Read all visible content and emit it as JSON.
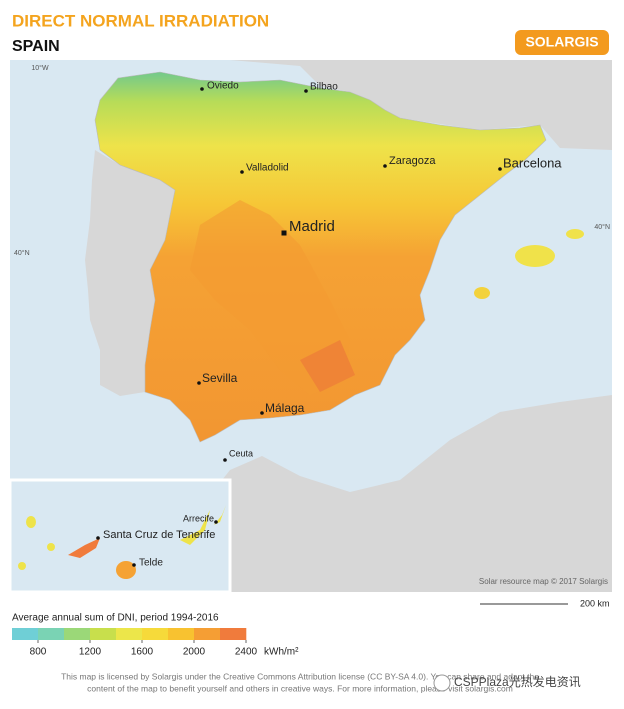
{
  "header": {
    "title": "DIRECT NORMAL IRRADIATION",
    "subtitle": "SPAIN",
    "brand": "SOLARGIS"
  },
  "map": {
    "graticule": [
      "10°W",
      "40°N",
      "40°N"
    ],
    "cities": [
      "Oviedo",
      "Bilbao",
      "Valladolid",
      "Zaragoza",
      "Barcelona",
      "Madrid",
      "Sevilla",
      "Málaga",
      "Ceuta"
    ],
    "inset_cities": [
      "Arrecife",
      "Santa Cruz de Tenerife",
      "Telde"
    ],
    "credit": "Solar resource map © 2017 Solargis",
    "scale": "200 km"
  },
  "legend": {
    "title": "Average annual sum of DNI, period 1994-2016",
    "lim": [
      600,
      2400
    ],
    "ticks": [
      800,
      1200,
      1600,
      2000,
      2400
    ],
    "unit": "kWh/m²",
    "colors": [
      "#6fcfd6",
      "#7ad3b4",
      "#9bd878",
      "#c8df4c",
      "#ece64a",
      "#f6da3a",
      "#f8c230",
      "#f59e34",
      "#f07b3c"
    ]
  },
  "footer": {
    "license": [
      "This map is licensed by Solargis under the Creative Commons Attribution license (CC BY-SA 4.0). You can share and adapt the",
      "content of the map to benefit yourself and others in creative ways. For more information, please visit solargis.com"
    ],
    "watermark": "CSPPlaza光热发电资讯"
  }
}
